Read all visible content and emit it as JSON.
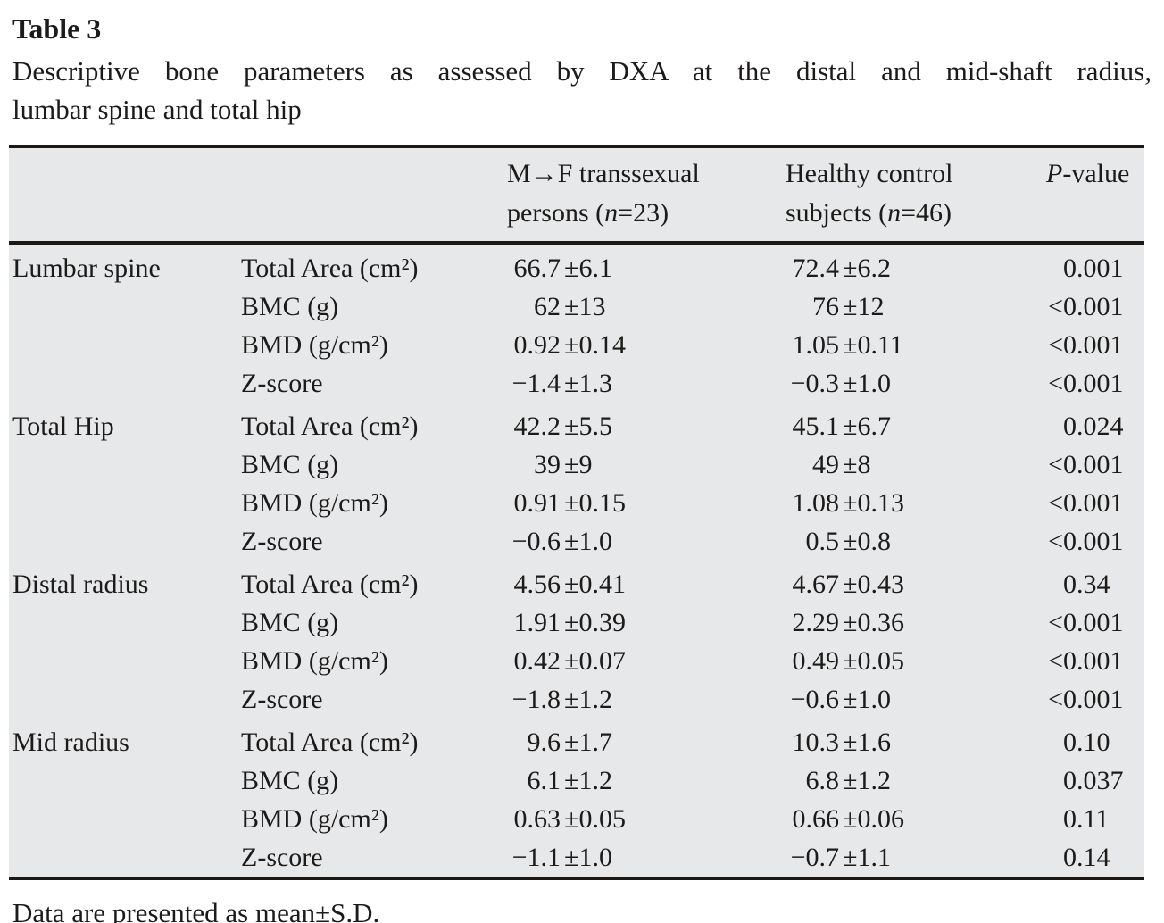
{
  "page": {
    "title": "Table 3",
    "caption_lines": [
      "Descriptive bone parameters as assessed by DXA at the distal and mid-shaft radius,",
      "lumbar spine and total hip"
    ],
    "footnote": "Data are presented as mean±S.D."
  },
  "colors": {
    "table_background": "#e7e8e9",
    "rule": "#1b1816",
    "text": "#1d1b1a"
  },
  "table": {
    "header": {
      "site_col": "",
      "parameter_col": "",
      "mf_group": [
        {
          "t": "M→F transsexual"
        },
        {
          "br": true
        },
        {
          "t": "persons ("
        },
        {
          "t": "n",
          "i": true
        },
        {
          "t": "=23)"
        }
      ],
      "control_group": [
        {
          "t": "Healthy control"
        },
        {
          "br": true
        },
        {
          "t": "subjects ("
        },
        {
          "t": "n",
          "i": true
        },
        {
          "t": "=46)"
        }
      ],
      "p_col": [
        {
          "t": "P",
          "i": true
        },
        {
          "t": "-value"
        }
      ]
    },
    "sections": [
      {
        "site": "Lumbar spine",
        "rows": [
          {
            "parameter": "Total Area (cm²)",
            "mf": "66.7±6.1",
            "control": "72.4±6.2",
            "p": "0.001"
          },
          {
            "parameter": "BMC (g)",
            "mf": "62±13",
            "control": "76±12",
            "p": "<0.001"
          },
          {
            "parameter": "BMD (g/cm²)",
            "mf": "0.92±0.14",
            "control": "1.05±0.11",
            "p": "<0.001"
          },
          {
            "parameter": "Z-score",
            "mf": "−1.4±1.3",
            "control": "−0.3±1.0",
            "p": "<0.001"
          }
        ]
      },
      {
        "site": "Total Hip",
        "rows": [
          {
            "parameter": "Total Area (cm²)",
            "mf": "42.2±5.5",
            "control": "45.1±6.7",
            "p": "0.024"
          },
          {
            "parameter": "BMC (g)",
            "mf": "39±9",
            "control": "49±8",
            "p": "<0.001"
          },
          {
            "parameter": "BMD (g/cm²)",
            "mf": "0.91±0.15",
            "control": "1.08±0.13",
            "p": "<0.001"
          },
          {
            "parameter": "Z-score",
            "mf": "−0.6±1.0",
            "control": "0.5±0.8",
            "p": "<0.001"
          }
        ]
      },
      {
        "site": "Distal radius",
        "rows": [
          {
            "parameter": "Total Area (cm²)",
            "mf": "4.56±0.41",
            "control": "4.67±0.43",
            "p": "0.34"
          },
          {
            "parameter": "BMC (g)",
            "mf": "1.91±0.39",
            "control": "2.29±0.36",
            "p": "<0.001"
          },
          {
            "parameter": "BMD (g/cm²)",
            "mf": "0.42±0.07",
            "control": "0.49±0.05",
            "p": "<0.001"
          },
          {
            "parameter": "Z-score",
            "mf": "−1.8±1.2",
            "control": "−0.6±1.0",
            "p": "<0.001"
          }
        ]
      },
      {
        "site": "Mid radius",
        "rows": [
          {
            "parameter": "Total Area (cm²)",
            "mf": "9.6±1.7",
            "control": "10.3±1.6",
            "p": "0.10"
          },
          {
            "parameter": "BMC (g)",
            "mf": "6.1±1.2",
            "control": "6.8±1.2",
            "p": "0.037"
          },
          {
            "parameter": "BMD (g/cm²)",
            "mf": "0.63±0.05",
            "control": "0.66±0.06",
            "p": "0.11"
          },
          {
            "parameter": "Z-score",
            "mf": "−1.1±1.0",
            "control": "−0.7±1.1",
            "p": "0.14"
          }
        ]
      }
    ]
  }
}
